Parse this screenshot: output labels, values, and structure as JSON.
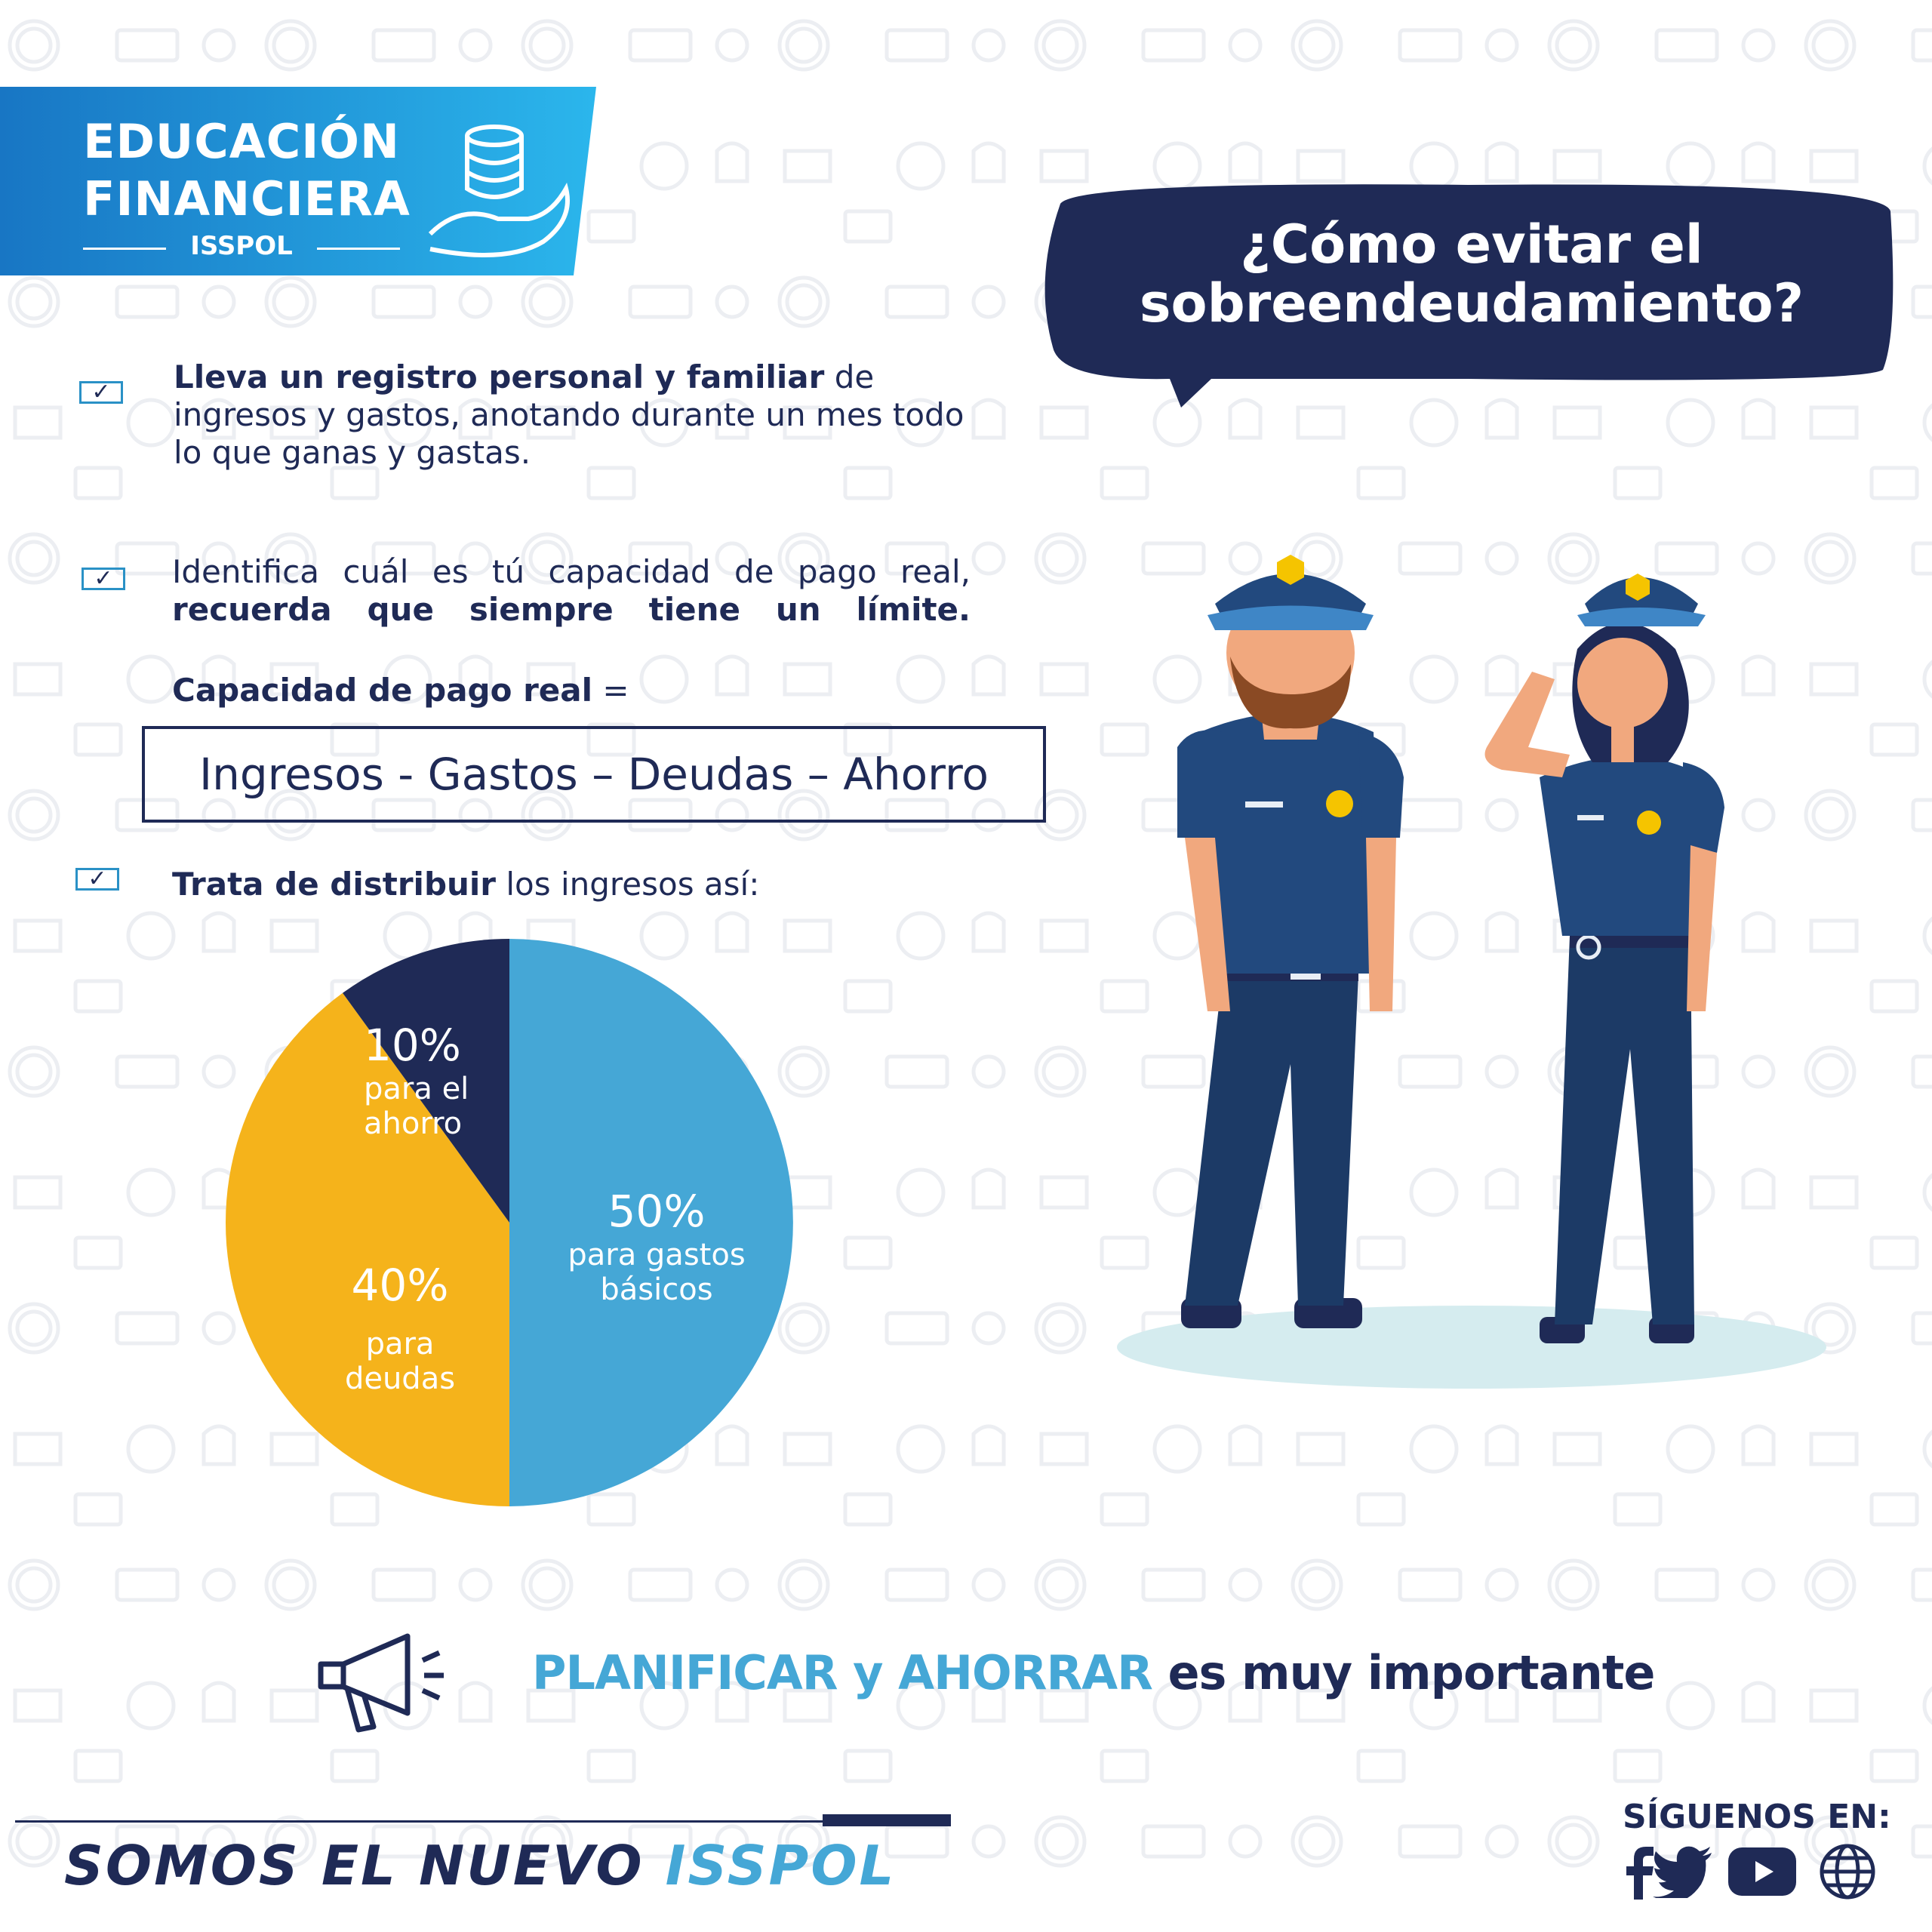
{
  "brand": {
    "banner_line1": "EDUCACIÓN",
    "banner_line2": "FINANCIERA",
    "banner_sub": "ISSPOL",
    "banner_color": "#1a8fd9",
    "navy": "#1f2a56",
    "light_blue": "#45a7d6",
    "yellow": "#f5b31b"
  },
  "heading": {
    "line1": "¿Cómo evitar el",
    "line2": "sobreendeudamiento?"
  },
  "tips": [
    {
      "bold": "Lleva un registro personal y familiar",
      "text": " de ingresos y gastos, anotando durante un mes todo lo que ganas y gastas."
    },
    {
      "line1": "Identifica cuál es tú capacidad de pago real,",
      "line2": "recuerda que siempre tiene un límite."
    },
    {
      "bold": "Trata de distribuir",
      "text": " los ingresos así:"
    }
  ],
  "formula": {
    "label_bold": "Capacidad de pago real",
    "label_rest": " =",
    "expression": "Ingresos -  Gastos – Deudas – Ahorro"
  },
  "chart_data": {
    "type": "pie",
    "slices": [
      {
        "pct": "50%",
        "label_line1": "para gastos",
        "label_line2": "básicos",
        "value": 50,
        "color": "#45a7d6"
      },
      {
        "pct": "40%",
        "label_line1": "para",
        "label_line2": "deudas",
        "value": 40,
        "color": "#f5b31b"
      },
      {
        "pct": "10%",
        "label_line1": "para el",
        "label_line2": "ahorro",
        "value": 10,
        "color": "#1f2a56"
      }
    ]
  },
  "tagline": {
    "highlight": "PLANIFICAR y AHORRAR",
    "rest": " es muy importante"
  },
  "footer": {
    "slogan_dark": "SOMOS EL NUEVO ",
    "slogan_light": "ISSPOL",
    "follow": "SÍGUENOS EN:",
    "socials": [
      "facebook-icon",
      "twitter-icon",
      "youtube-icon",
      "web-globe-icon"
    ]
  }
}
